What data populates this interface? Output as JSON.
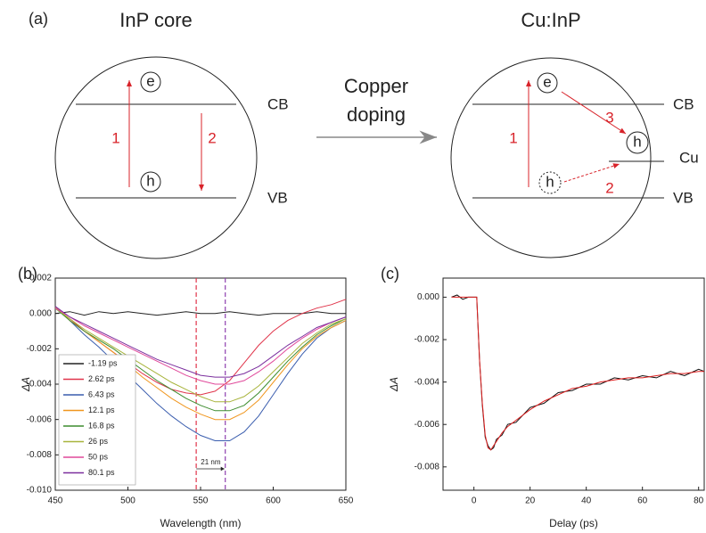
{
  "diagram": {
    "panel_label": "(a)",
    "left_title": "InP core",
    "right_title": "Cu:InP",
    "arrow_label": [
      "Copper",
      "doping"
    ],
    "left": {
      "e": "e",
      "h": "h",
      "up": "1",
      "down": "2",
      "cb": "CB",
      "vb": "VB"
    },
    "right": {
      "e": "e",
      "h_cu": "h",
      "h": "h",
      "up": "1",
      "transfer": "3",
      "recomb": "2",
      "cu": "Cu",
      "cb": "CB",
      "vb": "VB"
    }
  },
  "chart_data": [
    {
      "type": "line",
      "panel_label": "(b)",
      "x_label": "Wavelength (nm)",
      "y_label": "ΔA",
      "legend": "lower left",
      "xlim": [
        450,
        650
      ],
      "xticks": [
        450,
        500,
        550,
        600,
        650
      ],
      "ylim": [
        -0.01,
        0.002
      ],
      "yticks": [
        0.002,
        {
          "value": 0,
          "label": "0.000"
        },
        -0.002,
        -0.004,
        -0.006,
        -0.008,
        {
          "value": -0.01,
          "label": "-0.010"
        }
      ],
      "vlines": [
        {
          "value": 547,
          "color": "#e0344a"
        },
        {
          "value": 567,
          "color": "#8e3fb0"
        }
      ],
      "annotation": "21 nm",
      "x": [
        450,
        460,
        470,
        480,
        490,
        500,
        510,
        520,
        530,
        540,
        550,
        560,
        570,
        580,
        590,
        600,
        610,
        620,
        630,
        640,
        650
      ],
      "series": [
        {
          "name": "-1.19 ps",
          "color": "#222222",
          "values": [
            0,
            0.0001,
            -0.0001,
            0.0001,
            0,
            0.0001,
            0,
            -0.0001,
            0,
            0.0001,
            0,
            0,
            0.0001,
            0,
            -0.0001,
            0,
            0,
            0,
            0.0001,
            0,
            0
          ]
        },
        {
          "name": "2.62 ps",
          "color": "#e0344a",
          "values": [
            0.0003,
            -0.0003,
            -0.001,
            -0.0016,
            -0.0022,
            -0.0028,
            -0.0034,
            -0.0039,
            -0.0043,
            -0.0045,
            -0.0046,
            -0.0044,
            -0.0038,
            -0.0028,
            -0.0018,
            -0.001,
            -0.0004,
            0,
            0.0003,
            0.0005,
            0.0008
          ]
        },
        {
          "name": "6.43 ps",
          "color": "#3a5dae",
          "values": [
            0.0004,
            -0.0004,
            -0.0012,
            -0.0019,
            -0.0027,
            -0.0035,
            -0.0043,
            -0.0051,
            -0.0058,
            -0.0064,
            -0.0069,
            -0.0072,
            -0.0072,
            -0.0067,
            -0.0058,
            -0.0046,
            -0.0034,
            -0.0023,
            -0.0014,
            -0.0008,
            -0.0004
          ]
        },
        {
          "name": "12.1 ps",
          "color": "#f0961e",
          "values": [
            0.0004,
            -0.0004,
            -0.001,
            -0.0016,
            -0.0022,
            -0.0029,
            -0.0036,
            -0.0042,
            -0.0048,
            -0.0053,
            -0.0057,
            -0.006,
            -0.006,
            -0.0056,
            -0.0049,
            -0.0039,
            -0.0029,
            -0.002,
            -0.0013,
            -0.0008,
            -0.0004
          ]
        },
        {
          "name": "16.8 ps",
          "color": "#3d8c2e",
          "values": [
            0.0003,
            -0.0004,
            -0.001,
            -0.0015,
            -0.002,
            -0.0026,
            -0.0032,
            -0.0038,
            -0.0043,
            -0.0048,
            -0.0052,
            -0.0055,
            -0.0055,
            -0.0052,
            -0.0045,
            -0.0036,
            -0.0027,
            -0.0019,
            -0.0012,
            -0.0007,
            -0.0003
          ]
        },
        {
          "name": "26 ps",
          "color": "#a8b43c",
          "values": [
            0.0003,
            -0.0003,
            -0.0009,
            -0.0014,
            -0.0019,
            -0.0024,
            -0.0029,
            -0.0034,
            -0.0039,
            -0.0043,
            -0.0047,
            -0.005,
            -0.005,
            -0.0047,
            -0.0041,
            -0.0033,
            -0.0025,
            -0.0017,
            -0.0011,
            -0.0006,
            -0.0003
          ]
        },
        {
          "name": "50 ps",
          "color": "#e0489a",
          "values": [
            0.0003,
            -0.0002,
            -0.0007,
            -0.0011,
            -0.0015,
            -0.0019,
            -0.0023,
            -0.0027,
            -0.0031,
            -0.0035,
            -0.0038,
            -0.004,
            -0.004,
            -0.0038,
            -0.0033,
            -0.0027,
            -0.002,
            -0.0014,
            -0.0009,
            -0.0005,
            -0.0002
          ]
        },
        {
          "name": "80.1 ps",
          "color": "#7b2f9e",
          "values": [
            0.0004,
            -0.0002,
            -0.0006,
            -0.001,
            -0.0014,
            -0.0018,
            -0.0022,
            -0.0026,
            -0.0029,
            -0.0032,
            -0.0035,
            -0.0036,
            -0.0036,
            -0.0034,
            -0.003,
            -0.0024,
            -0.0018,
            -0.0013,
            -0.0008,
            -0.0005,
            -0.0002
          ]
        }
      ]
    },
    {
      "type": "line",
      "panel_label": "(c)",
      "x_label": "Delay (ps)",
      "y_label": "ΔA",
      "xlim": [
        -11,
        82
      ],
      "xticks": [
        0,
        20,
        40,
        60,
        80
      ],
      "ylim": [
        -0.0091,
        0.0009
      ],
      "yticks": [
        {
          "value": 0,
          "label": "0.000"
        },
        -0.002,
        -0.004,
        -0.006,
        -0.008
      ],
      "x": [
        -8,
        -6,
        -4,
        -2,
        0,
        1,
        2,
        3,
        4,
        5,
        6,
        7,
        8,
        10,
        12,
        15,
        20,
        25,
        30,
        35,
        40,
        45,
        50,
        55,
        60,
        65,
        70,
        75,
        80,
        82
      ],
      "series": [
        {
          "color": "#111111",
          "values": [
            0,
            0.0001,
            -0.0001,
            0,
            0,
            0,
            -0.003,
            -0.0051,
            -0.0066,
            -0.007,
            -0.0072,
            -0.0071,
            -0.0067,
            -0.0065,
            -0.006,
            -0.0059,
            -0.0052,
            -0.005,
            -0.0045,
            -0.0044,
            -0.0041,
            -0.0041,
            -0.0038,
            -0.0039,
            -0.0037,
            -0.0038,
            -0.0035,
            -0.0037,
            -0.0034,
            -0.0035
          ]
        },
        {
          "color": "#e02020",
          "values": [
            0,
            0,
            0,
            0,
            0,
            0,
            -0.003,
            -0.005,
            -0.0065,
            -0.0071,
            -0.0072,
            -0.007,
            -0.0068,
            -0.0064,
            -0.0061,
            -0.0058,
            -0.0053,
            -0.0049,
            -0.0046,
            -0.0043,
            -0.0042,
            -0.004,
            -0.0039,
            -0.0038,
            -0.0038,
            -0.0037,
            -0.0036,
            -0.0036,
            -0.0035,
            -0.0035
          ]
        }
      ]
    }
  ]
}
